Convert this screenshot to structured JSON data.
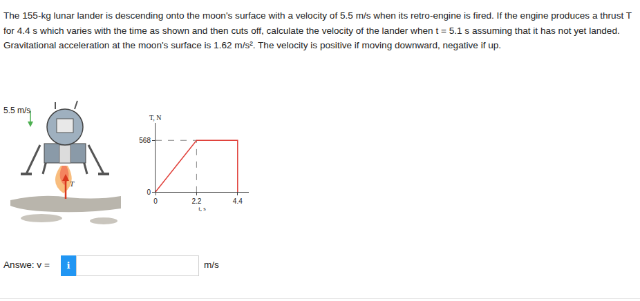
{
  "problem": {
    "text": "The 155-kg lunar lander is descending onto the moon's surface with a velocity of 5.5 m/s when its retro-engine is fired. If the engine produces a thrust T for 4.4 s which varies with the time as shown and then cuts off, calculate the velocity of the lander when t = 5.1 s assuming that it has not yet landed. Gravitational acceleration at the moon's surface is 1.62 m/s². The velocity is positive if moving downward, negative if up."
  },
  "figure": {
    "velocity_label": "5.5 m/s",
    "thrust_label": "T"
  },
  "chart_data": {
    "type": "line",
    "x_label": "t, s",
    "y_label": "T, N",
    "x": [
      0,
      2.2,
      4.4,
      4.4
    ],
    "values": [
      0,
      568,
      568,
      0
    ],
    "color": "#e0403a",
    "xlim": [
      0,
      5
    ],
    "ylim": [
      0,
      760
    ],
    "xticks": [
      0,
      2.2,
      4.4
    ],
    "yticks": [
      0,
      568
    ],
    "grid": false
  },
  "answer": {
    "label": "Answe: v =",
    "icon": "i",
    "unit": "m/s"
  }
}
